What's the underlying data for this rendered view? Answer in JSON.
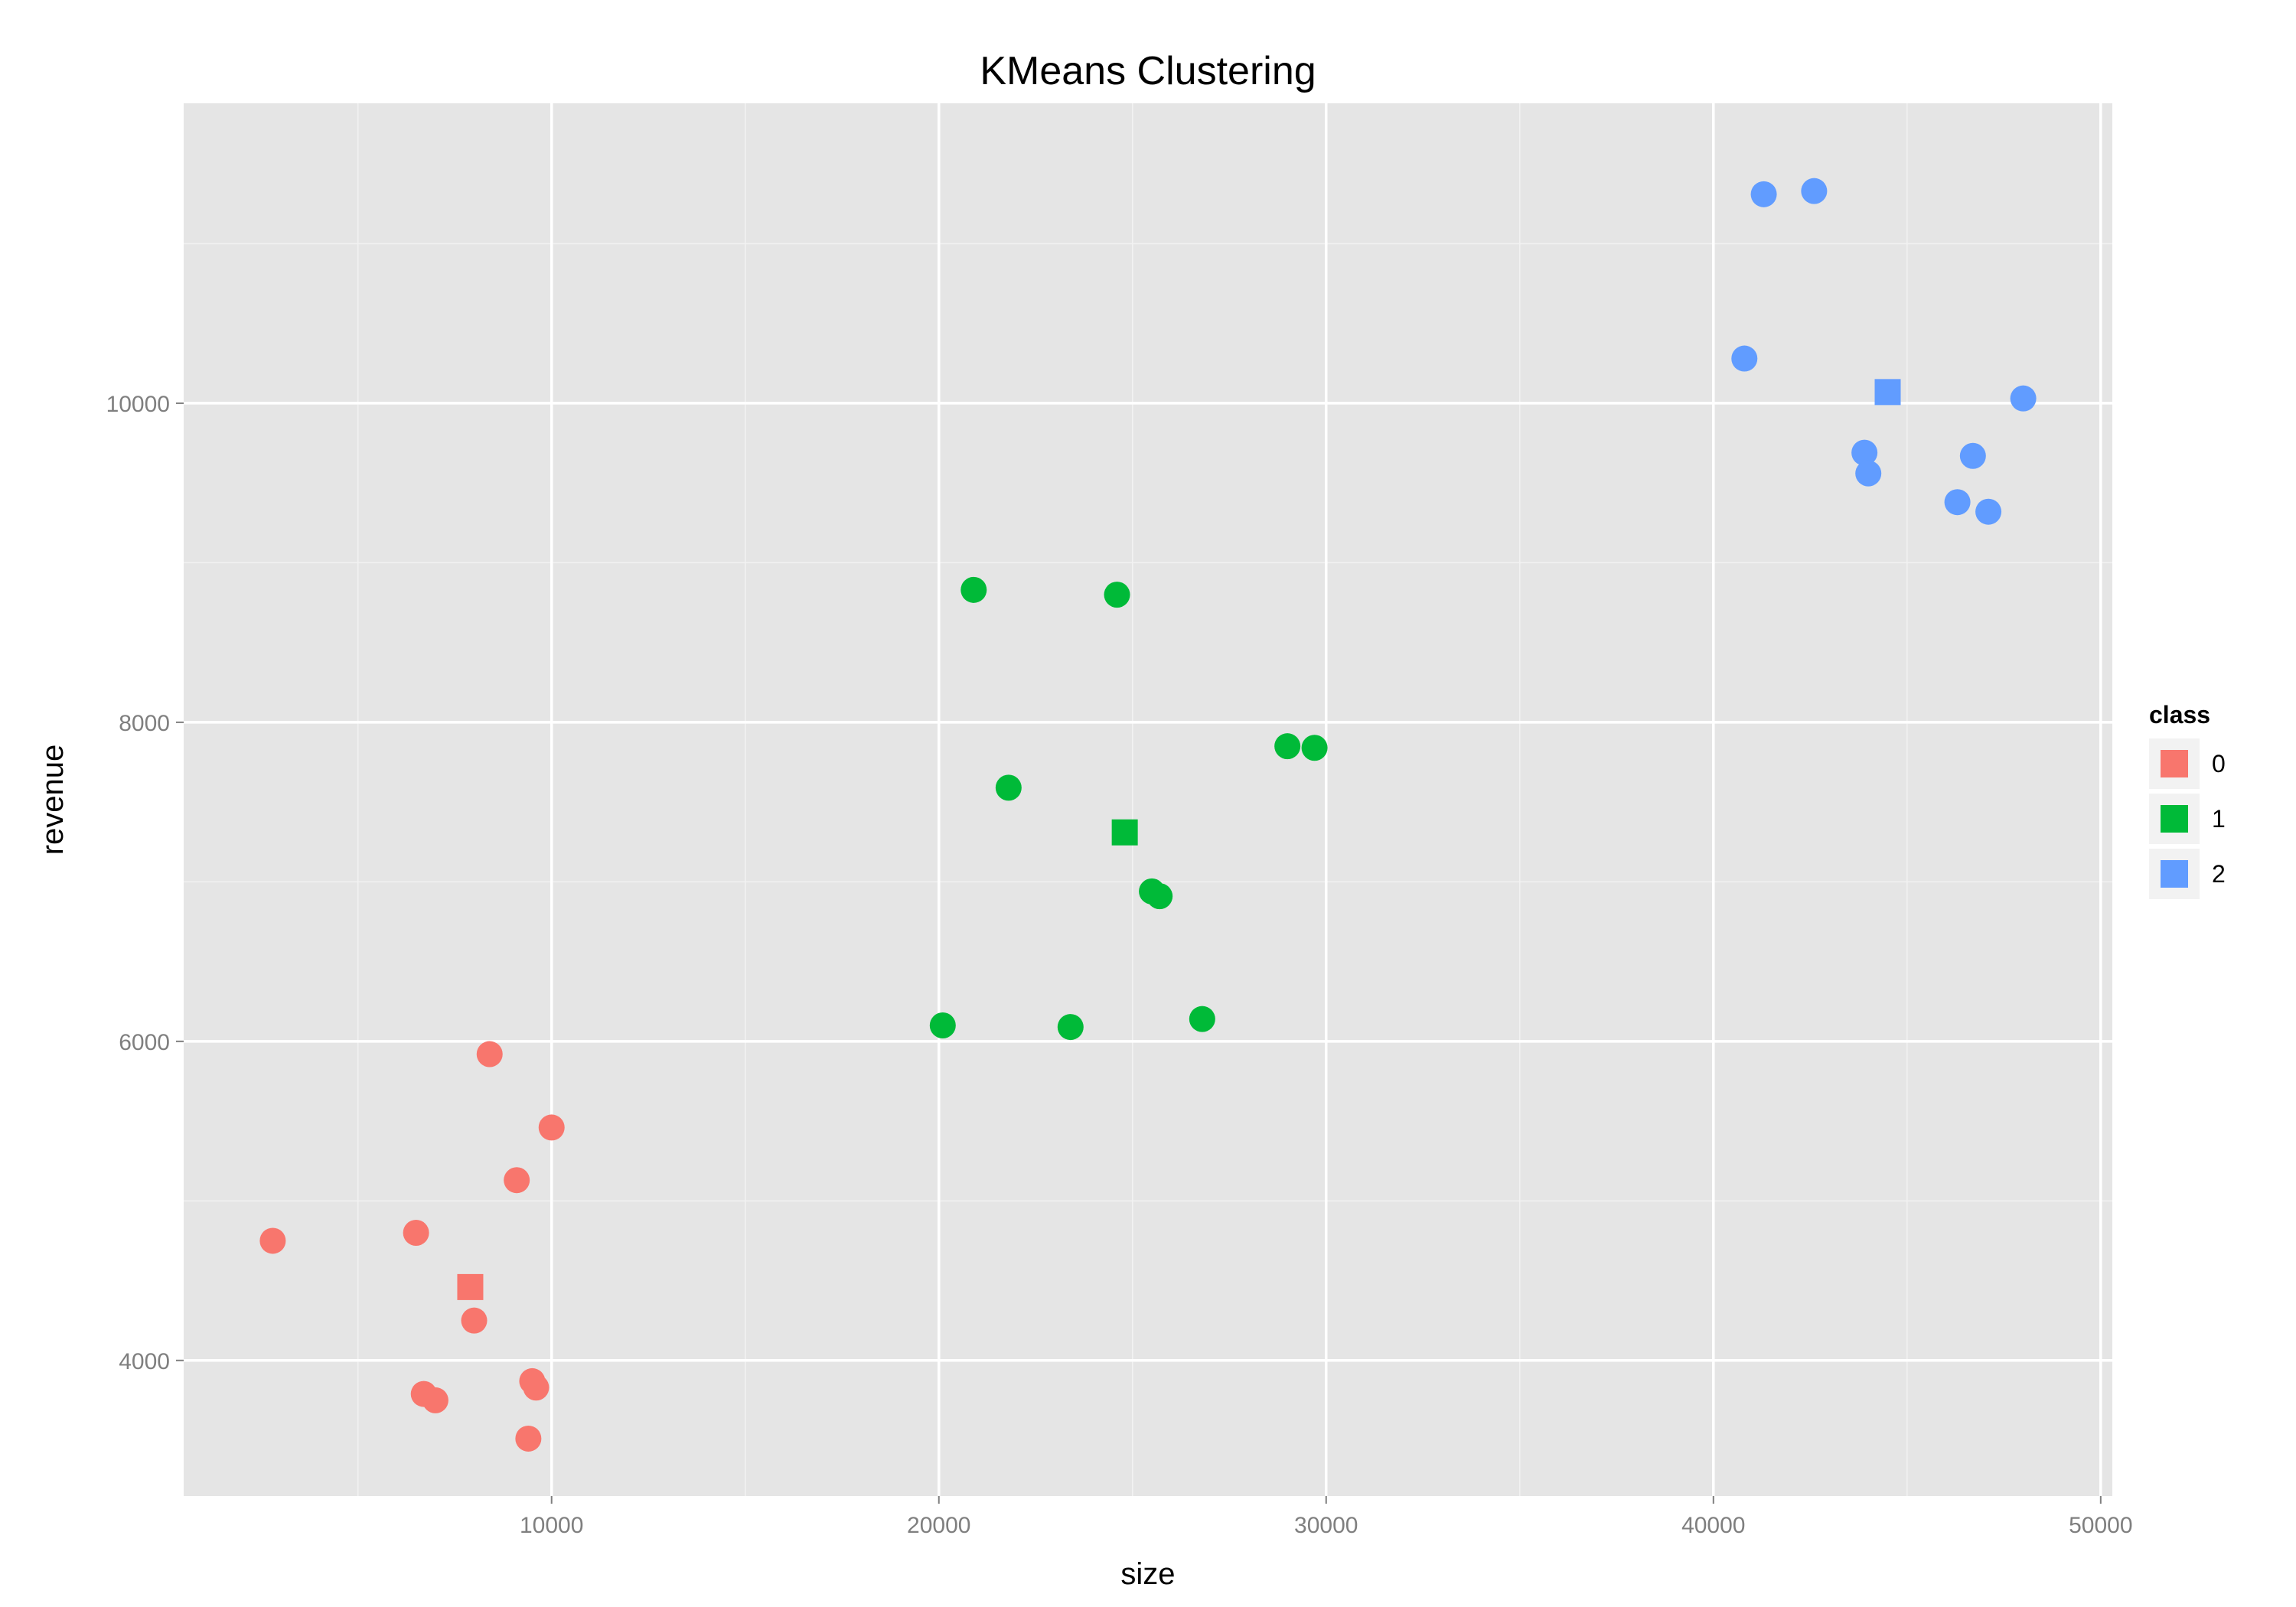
{
  "chart_data": {
    "type": "scatter",
    "title": "KMeans Clustering",
    "xlabel": "size",
    "ylabel": "revenue",
    "xlim": [
      500,
      50300
    ],
    "ylim": [
      3150,
      11880
    ],
    "x_ticks": [
      10000,
      20000,
      30000,
      40000,
      50000
    ],
    "y_ticks": [
      4000,
      6000,
      8000,
      10000
    ],
    "x_tick_labels": [
      "10000",
      "20000",
      "30000",
      "40000",
      "50000"
    ],
    "y_tick_labels": [
      "4000",
      "6000",
      "8000",
      "10000"
    ],
    "grid": true,
    "legend": {
      "title": "class",
      "placement": "right",
      "entries": [
        {
          "label": "0",
          "color": "#F8766D"
        },
        {
          "label": "1",
          "color": "#00BA38"
        },
        {
          "label": "2",
          "color": "#619CFF"
        }
      ]
    },
    "series": [
      {
        "name": "0",
        "color": "#F8766D",
        "points": [
          {
            "x": 2800,
            "y": 4750
          },
          {
            "x": 6500,
            "y": 4800
          },
          {
            "x": 8400,
            "y": 5920
          },
          {
            "x": 10000,
            "y": 5460
          },
          {
            "x": 9100,
            "y": 5130
          },
          {
            "x": 8000,
            "y": 4250
          },
          {
            "x": 6700,
            "y": 3790
          },
          {
            "x": 7000,
            "y": 3750
          },
          {
            "x": 9500,
            "y": 3870
          },
          {
            "x": 9600,
            "y": 3830
          },
          {
            "x": 9400,
            "y": 3510
          }
        ],
        "centroid": {
          "x": 7900,
          "y": 4460
        }
      },
      {
        "name": "1",
        "color": "#00BA38",
        "points": [
          {
            "x": 20900,
            "y": 8830
          },
          {
            "x": 24600,
            "y": 8800
          },
          {
            "x": 21800,
            "y": 7590
          },
          {
            "x": 29000,
            "y": 7850
          },
          {
            "x": 29700,
            "y": 7840
          },
          {
            "x": 25500,
            "y": 6940
          },
          {
            "x": 25700,
            "y": 6910
          },
          {
            "x": 20100,
            "y": 6100
          },
          {
            "x": 23400,
            "y": 6090
          },
          {
            "x": 26800,
            "y": 6140
          }
        ],
        "centroid": {
          "x": 24800,
          "y": 7310
        }
      },
      {
        "name": "2",
        "color": "#619CFF",
        "points": [
          {
            "x": 41300,
            "y": 11310
          },
          {
            "x": 42600,
            "y": 11330
          },
          {
            "x": 40800,
            "y": 10280
          },
          {
            "x": 48000,
            "y": 10030
          },
          {
            "x": 43900,
            "y": 9690
          },
          {
            "x": 44000,
            "y": 9560
          },
          {
            "x": 46700,
            "y": 9670
          },
          {
            "x": 46300,
            "y": 9380
          },
          {
            "x": 47100,
            "y": 9320
          }
        ],
        "centroid": {
          "x": 44500,
          "y": 10070
        }
      }
    ]
  }
}
